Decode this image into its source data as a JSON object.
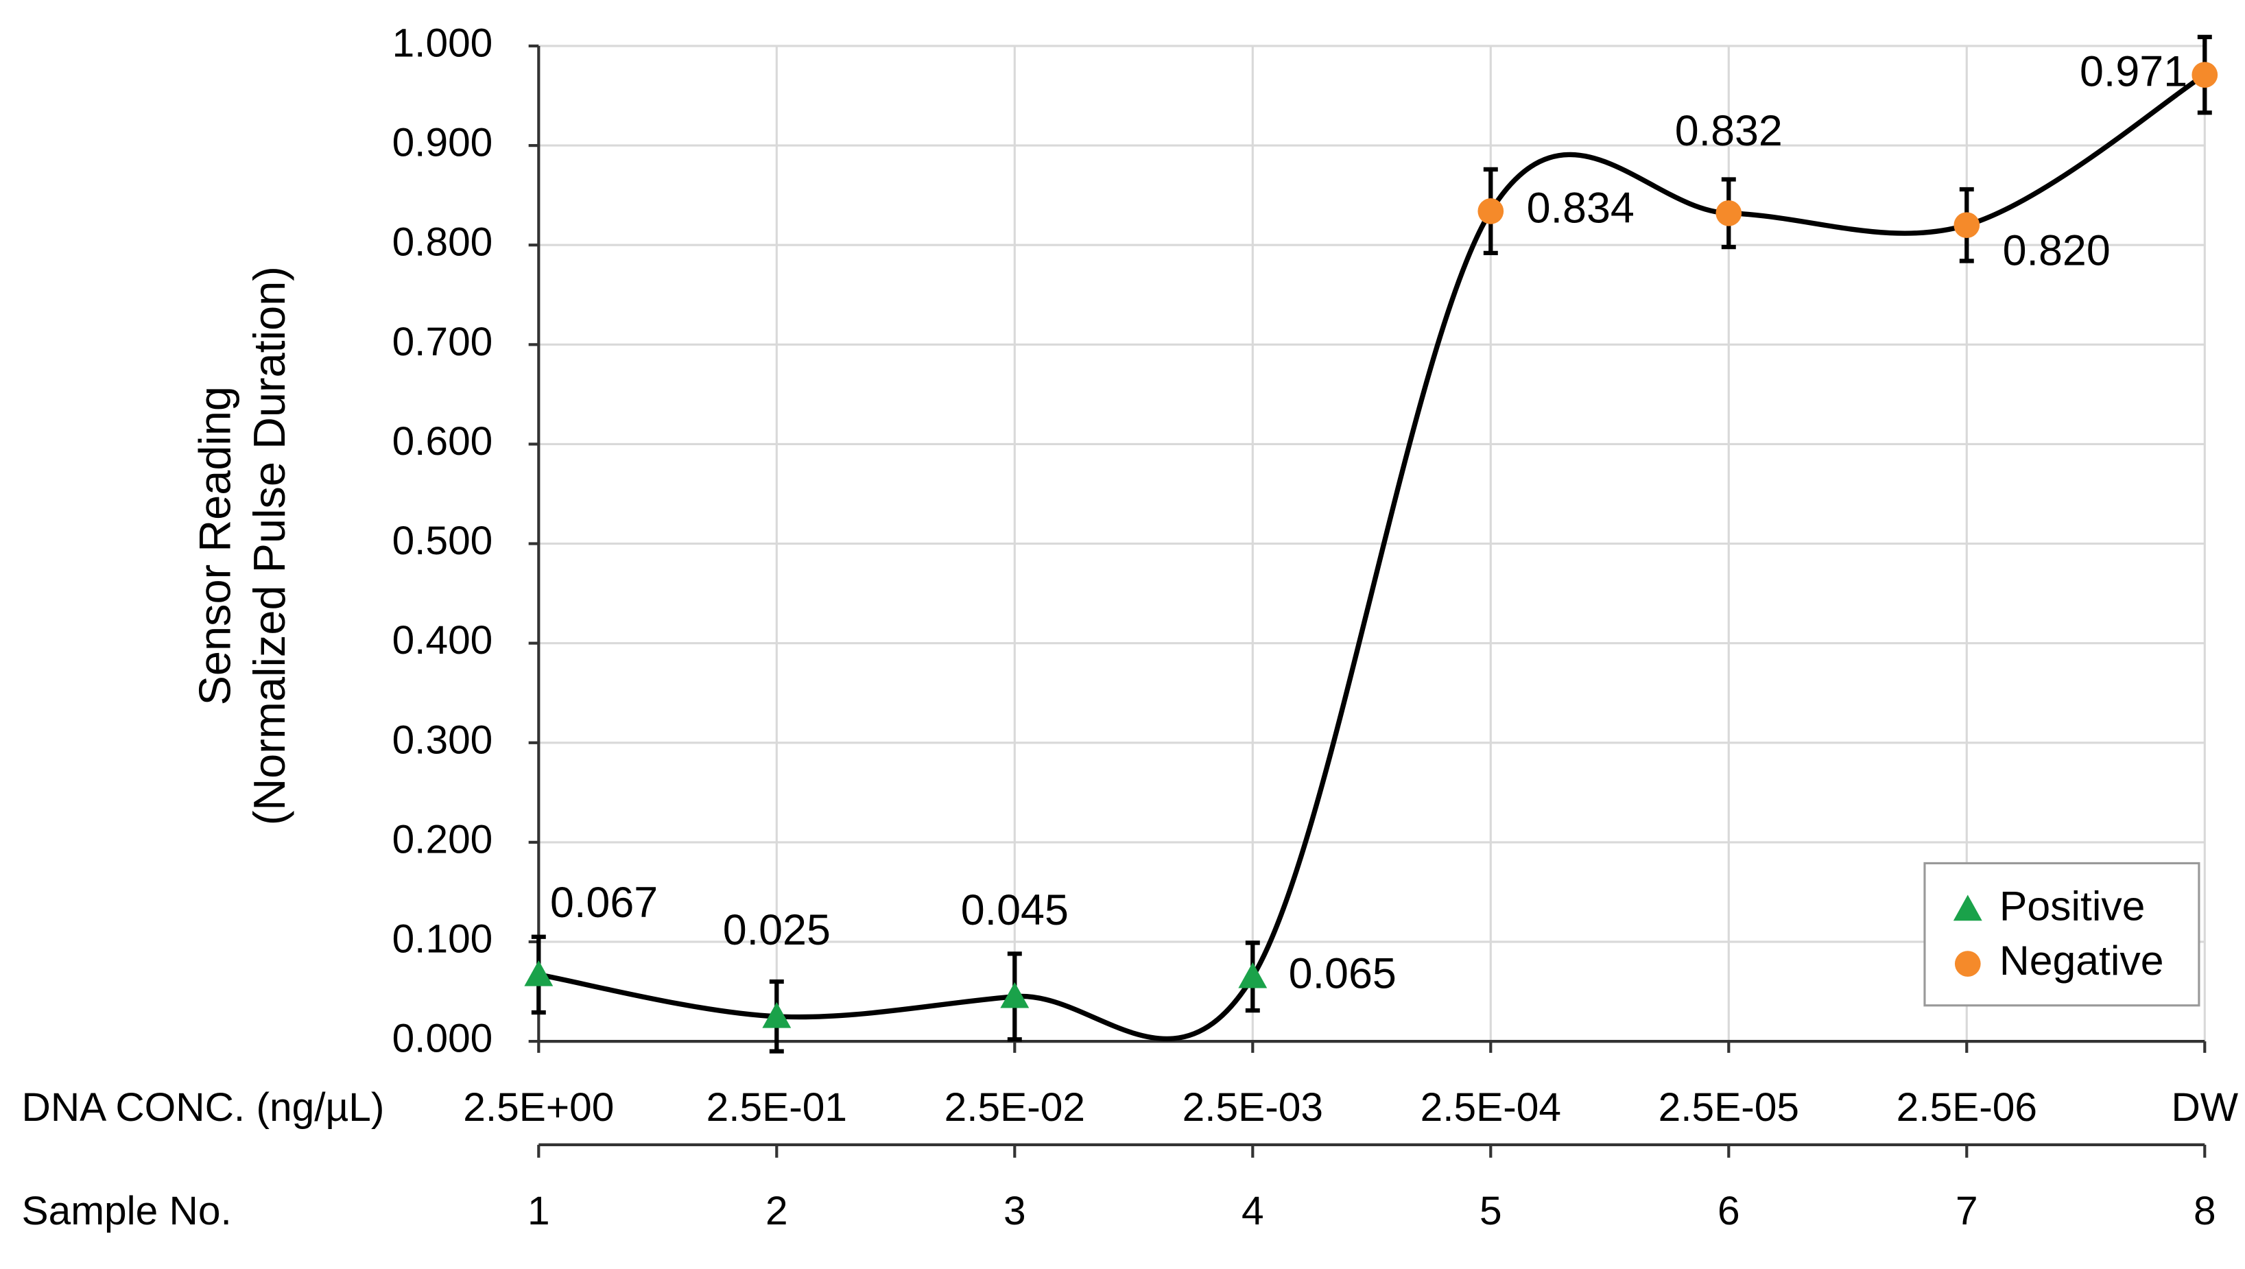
{
  "chart_data": {
    "type": "line",
    "ylabel": [
      "Sensor Reading",
      "(Normalized Pulse Duration)"
    ],
    "category_label": "DNA CONC. (ng/µL)",
    "xlabel": "Sample No.",
    "x": [
      1,
      2,
      3,
      4,
      5,
      6,
      7,
      8
    ],
    "categories": [
      "2.5E+00",
      "2.5E-01",
      "2.5E-02",
      "2.5E-03",
      "2.5E-04",
      "2.5E-05",
      "2.5E-06",
      "DW"
    ],
    "xlim": [
      1,
      8
    ],
    "xticks": [
      1,
      2,
      3,
      4,
      5,
      6,
      7,
      8
    ],
    "ylim": [
      0,
      1
    ],
    "yticks": [
      {
        "value": 0,
        "label": "0.000"
      },
      {
        "value": 0.1,
        "label": "0.100"
      },
      {
        "value": 0.2,
        "label": "0.200"
      },
      {
        "value": 0.3,
        "label": "0.300"
      },
      {
        "value": 0.4,
        "label": "0.400"
      },
      {
        "value": 0.5,
        "label": "0.500"
      },
      {
        "value": 0.6,
        "label": "0.600"
      },
      {
        "value": 0.7,
        "label": "0.700"
      },
      {
        "value": 0.8,
        "label": "0.800"
      },
      {
        "value": 0.9,
        "label": "0.900"
      },
      {
        "value": 1,
        "label": "1.000"
      }
    ],
    "grid": true,
    "legend": "lower right",
    "line_color": "#000000",
    "smooth": true,
    "series": [
      {
        "name": "Positive",
        "color": "#1aa24a",
        "marker": "triangle",
        "values": [
          0.067,
          0.025,
          0.045,
          0.065,
          null,
          null,
          null,
          null
        ],
        "value_labels": [
          "0.067",
          "0.025",
          "0.045",
          "0.065",
          null,
          null,
          null,
          null
        ],
        "errors": [
          0.038,
          0.035,
          0.043,
          0.034,
          null,
          null,
          null,
          null
        ]
      },
      {
        "name": "Negative",
        "color": "#f58a2a",
        "marker": "circle",
        "values": [
          null,
          null,
          null,
          null,
          0.834,
          0.832,
          0.82,
          0.971
        ],
        "value_labels": [
          null,
          null,
          null,
          null,
          "0.834",
          "0.832",
          "0.820",
          "0.971"
        ],
        "errors": [
          null,
          null,
          null,
          null,
          0.042,
          0.034,
          0.036,
          0.038
        ]
      }
    ]
  }
}
